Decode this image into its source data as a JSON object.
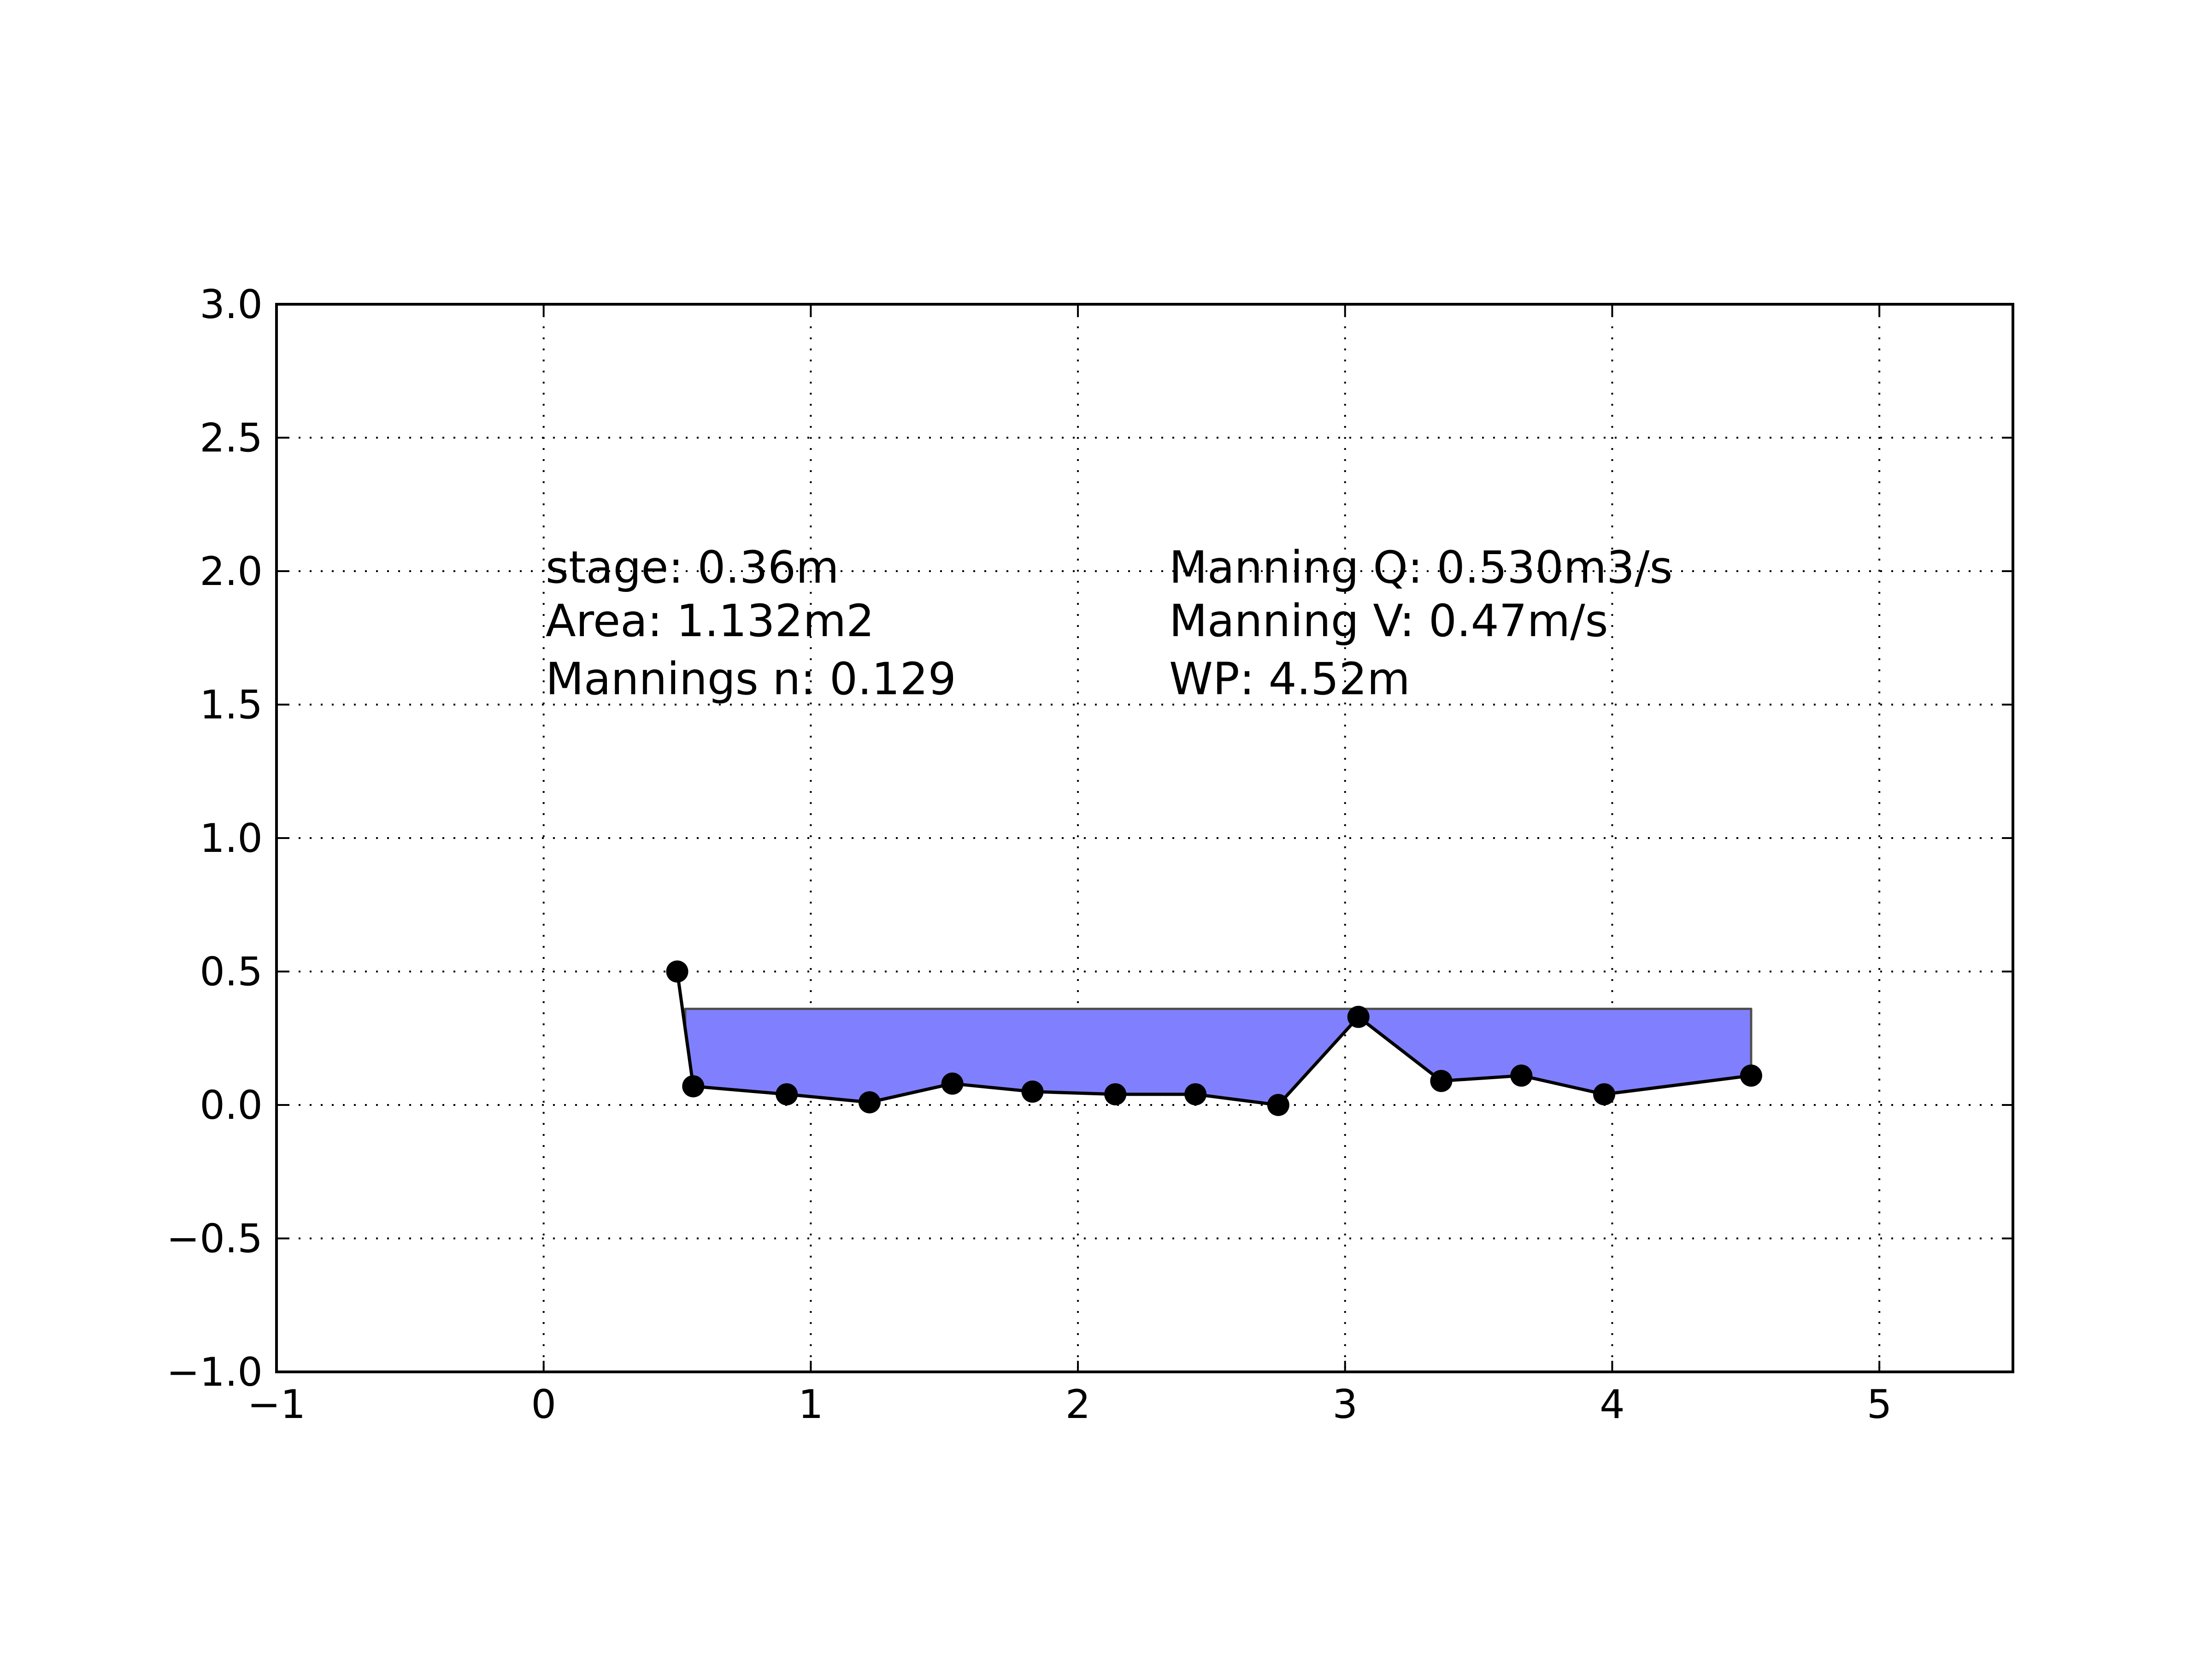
{
  "chart_data": {
    "type": "line",
    "xlim": [
      -1,
      5.5
    ],
    "ylim": [
      -1.0,
      3.0
    ],
    "x_ticks": [
      -1,
      0,
      1,
      2,
      3,
      4,
      5
    ],
    "x_tick_labels": [
      "−1",
      "0",
      "1",
      "2",
      "3",
      "4",
      "5"
    ],
    "y_ticks": [
      -1.0,
      -0.5,
      0.0,
      0.5,
      1.0,
      1.5,
      2.0,
      2.5,
      3.0
    ],
    "y_tick_labels": [
      "−1.0",
      "−0.5",
      "0.0",
      "0.5",
      "1.0",
      "1.5",
      "2.0",
      "2.5",
      "3.0"
    ],
    "grid": true,
    "series": [
      {
        "x": [
          0.5,
          0.56,
          0.91,
          1.22,
          1.53,
          1.83,
          2.14,
          2.44,
          2.75,
          3.05,
          3.36,
          3.66,
          3.97,
          4.52
        ],
        "y": [
          0.5,
          0.07,
          0.04,
          0.01,
          0.08,
          0.05,
          0.04,
          0.04,
          0.0,
          0.33,
          0.09,
          0.11,
          0.04,
          0.11
        ],
        "color": "#000000"
      }
    ],
    "water": {
      "stage": 0.36,
      "x_start": 0.53,
      "x_end": 4.52,
      "fill": "#8080ff"
    },
    "annotations": {
      "stage": "stage: 0.36m",
      "area": "Area: 1.132m2",
      "mannings_n": "Mannings n: 0.129",
      "manning_q": "Manning Q: 0.530m3/s",
      "manning_v": "Manning V: 0.47m/s",
      "wp": "WP: 4.52m"
    }
  }
}
